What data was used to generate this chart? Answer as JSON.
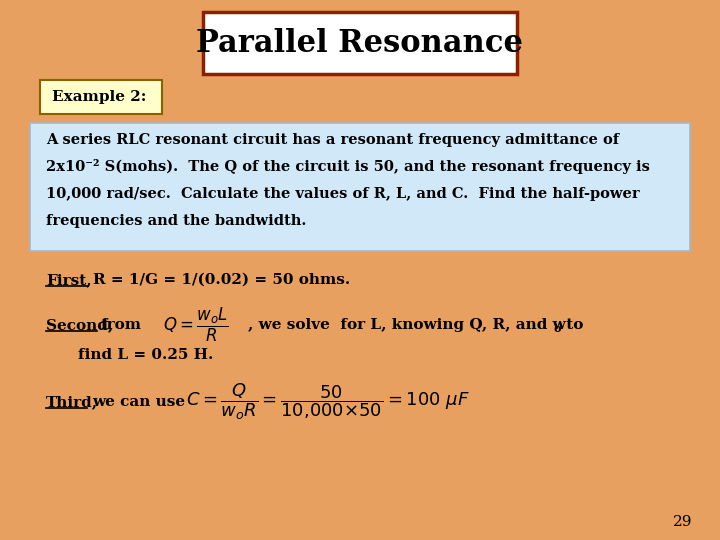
{
  "background_color": "#E8A060",
  "title": "Parallel Resonance",
  "title_box_fill": "#FFFFFF",
  "title_box_edge": "#8B2000",
  "title_fontsize": 22,
  "example_label": "Example 2:",
  "example_box_fill": "#FFFFCC",
  "example_box_edge": "#8B6000",
  "problem_box_fill": "#D0E8F8",
  "problem_box_edge": "#A0B8D0",
  "problem_lines": [
    "A series RLC resonant circuit has a resonant frequency admittance of",
    "2x10⁻² S(mohs).  The Q of the circuit is 50, and the resonant frequency is",
    "10,000 rad/sec.  Calculate the values of R, L, and C.  Find the half-power",
    "frequencies and the bandwidth."
  ],
  "first_label": "First,",
  "first_rest": "R = 1/G = 1/(0.02) = 50 ohms.",
  "second_label": "Second,",
  "second_from": "from",
  "second_rest": ", we solve  for L, knowing Q, R, and w",
  "second_sub": "o",
  "second_end": " to",
  "find_text": "find L = 0.25 H.",
  "third_label": "Third,",
  "third_rest": "we can use",
  "page_number": "29",
  "text_color": "#000000"
}
